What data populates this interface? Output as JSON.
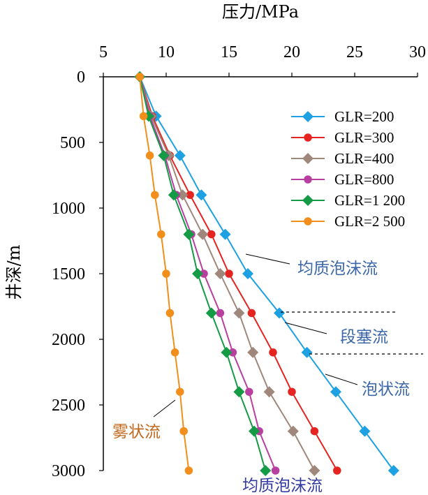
{
  "chart_data": {
    "type": "line",
    "xlabel": "压力/MPa",
    "ylabel": "井深/m",
    "x_axis_position": "top",
    "y_inverted": true,
    "xlim": [
      5,
      30
    ],
    "ylim": [
      0,
      3000
    ],
    "x_ticks": [
      5,
      10,
      15,
      20,
      25,
      30
    ],
    "y_ticks": [
      0,
      500,
      1000,
      1500,
      2000,
      2500,
      3000
    ],
    "grid": false,
    "legend_position": "top-right",
    "series": [
      {
        "name": "GLR=200",
        "color": "#1ea1e3",
        "marker": "diamond",
        "points": [
          [
            7.9,
            0
          ],
          [
            9.2,
            300
          ],
          [
            11.1,
            600
          ],
          [
            12.8,
            900
          ],
          [
            14.7,
            1200
          ],
          [
            16.5,
            1500
          ],
          [
            19.0,
            1800
          ],
          [
            21.2,
            2100
          ],
          [
            23.5,
            2400
          ],
          [
            25.8,
            2700
          ],
          [
            28.1,
            3000
          ]
        ]
      },
      {
        "name": "GLR=300",
        "color": "#e52421",
        "marker": "circle",
        "points": [
          [
            7.9,
            0
          ],
          [
            8.9,
            300
          ],
          [
            10.3,
            600
          ],
          [
            11.9,
            900
          ],
          [
            13.6,
            1200
          ],
          [
            15.0,
            1500
          ],
          [
            16.8,
            1800
          ],
          [
            18.5,
            2100
          ],
          [
            20.0,
            2400
          ],
          [
            21.8,
            2700
          ],
          [
            23.6,
            3000
          ]
        ]
      },
      {
        "name": "GLR=400",
        "color": "#a0877b",
        "marker": "diamond",
        "points": [
          [
            7.9,
            0
          ],
          [
            8.8,
            300
          ],
          [
            10.2,
            600
          ],
          [
            11.3,
            900
          ],
          [
            12.9,
            1200
          ],
          [
            14.3,
            1500
          ],
          [
            15.8,
            1800
          ],
          [
            16.9,
            2100
          ],
          [
            18.2,
            2400
          ],
          [
            20.1,
            2700
          ],
          [
            21.8,
            3000
          ]
        ]
      },
      {
        "name": "GLR=800",
        "color": "#b83fa0",
        "marker": "circle",
        "points": [
          [
            7.9,
            0
          ],
          [
            8.7,
            300
          ],
          [
            9.9,
            600
          ],
          [
            10.8,
            900
          ],
          [
            12.0,
            1200
          ],
          [
            13.0,
            1500
          ],
          [
            14.3,
            1800
          ],
          [
            15.3,
            2100
          ],
          [
            16.6,
            2400
          ],
          [
            17.4,
            2700
          ],
          [
            18.7,
            3000
          ]
        ]
      },
      {
        "name": "GLR=1 200",
        "color": "#159b45",
        "marker": "diamond",
        "points": [
          [
            7.9,
            0
          ],
          [
            8.6,
            300
          ],
          [
            9.8,
            600
          ],
          [
            10.6,
            900
          ],
          [
            11.8,
            1200
          ],
          [
            12.5,
            1500
          ],
          [
            13.6,
            1800
          ],
          [
            14.8,
            2100
          ],
          [
            15.8,
            2400
          ],
          [
            17.0,
            2700
          ],
          [
            17.9,
            3000
          ]
        ]
      },
      {
        "name": "GLR=2 500",
        "color": "#f18e1c",
        "marker": "circle",
        "points": [
          [
            7.9,
            0
          ],
          [
            8.2,
            300
          ],
          [
            8.7,
            600
          ],
          [
            9.1,
            900
          ],
          [
            9.6,
            1200
          ],
          [
            10.0,
            1500
          ],
          [
            10.3,
            1800
          ],
          [
            10.7,
            2100
          ],
          [
            11.1,
            2400
          ],
          [
            11.4,
            2700
          ],
          [
            11.8,
            3000
          ]
        ]
      }
    ],
    "annotations": [
      {
        "text": "均质泡沫流",
        "color": "#3b67a8"
      },
      {
        "text": "段塞流",
        "color": "#3b67a8"
      },
      {
        "text": "泡状流",
        "color": "#3b67a8"
      },
      {
        "text": "雾状流",
        "color": "#c0681c"
      },
      {
        "text": "均质泡沫流",
        "color": "#333aa0"
      }
    ]
  }
}
